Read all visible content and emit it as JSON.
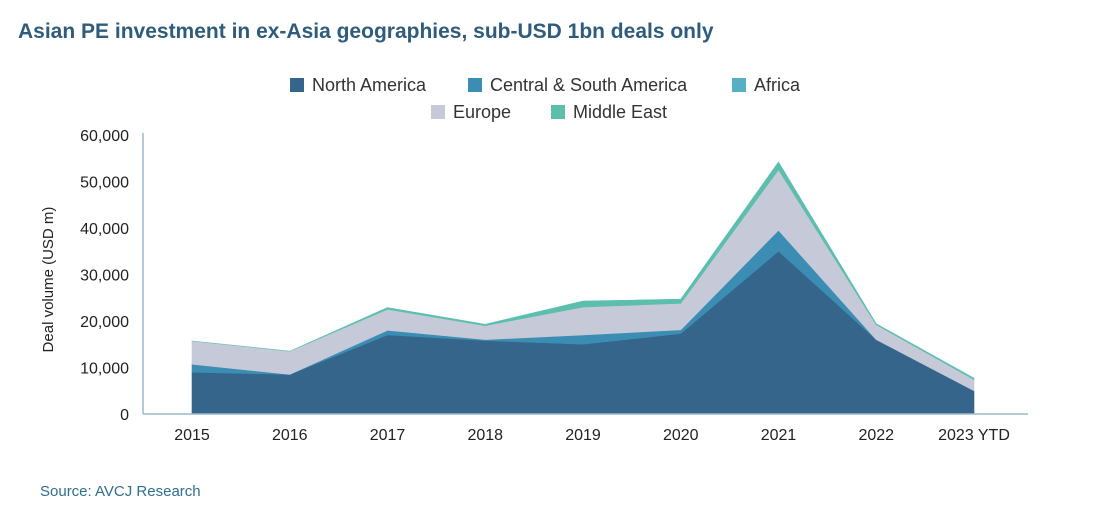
{
  "title": "Asian PE investment in ex-Asia geographies, sub-USD 1bn deals only",
  "source": "Source: AVCJ Research",
  "chart_data": {
    "type": "area",
    "stacked": true,
    "categories": [
      "2015",
      "2016",
      "2017",
      "2018",
      "2019",
      "2020",
      "2021",
      "2022",
      "2023 YTD"
    ],
    "ylabel": "Deal volume (USD m)",
    "ylim": [
      0,
      60000
    ],
    "yticks": [
      0,
      10000,
      20000,
      30000,
      40000,
      50000,
      60000
    ],
    "ytick_labels": [
      "0",
      "10,000",
      "20,000",
      "30,000",
      "40,000",
      "50,000",
      "60,000"
    ],
    "grid": false,
    "legend_position": "top-center",
    "series": [
      {
        "name": "North America",
        "color": "#35658a",
        "values": [
          9000,
          8500,
          17000,
          15800,
          15000,
          17300,
          35000,
          16000,
          5000
        ]
      },
      {
        "name": "Central & South America",
        "color": "#3b8db3",
        "values": [
          1700,
          0,
          1000,
          200,
          2000,
          800,
          4500,
          0,
          0
        ]
      },
      {
        "name": "Africa",
        "color": "#55b0c5",
        "values": [
          0,
          0,
          0,
          0,
          0,
          0,
          0,
          0,
          0
        ]
      },
      {
        "name": "Europe",
        "color": "#c6c9d8",
        "values": [
          5000,
          5000,
          4500,
          3000,
          6000,
          5700,
          13000,
          3200,
          2400
        ]
      },
      {
        "name": "Middle East",
        "color": "#5cbfae",
        "values": [
          0,
          0,
          400,
          300,
          1300,
          900,
          1700,
          200,
          300
        ]
      }
    ],
    "legend_rows": [
      [
        "North America",
        "Central & South America",
        "Africa"
      ],
      [
        "Europe",
        "Middle East"
      ]
    ]
  }
}
